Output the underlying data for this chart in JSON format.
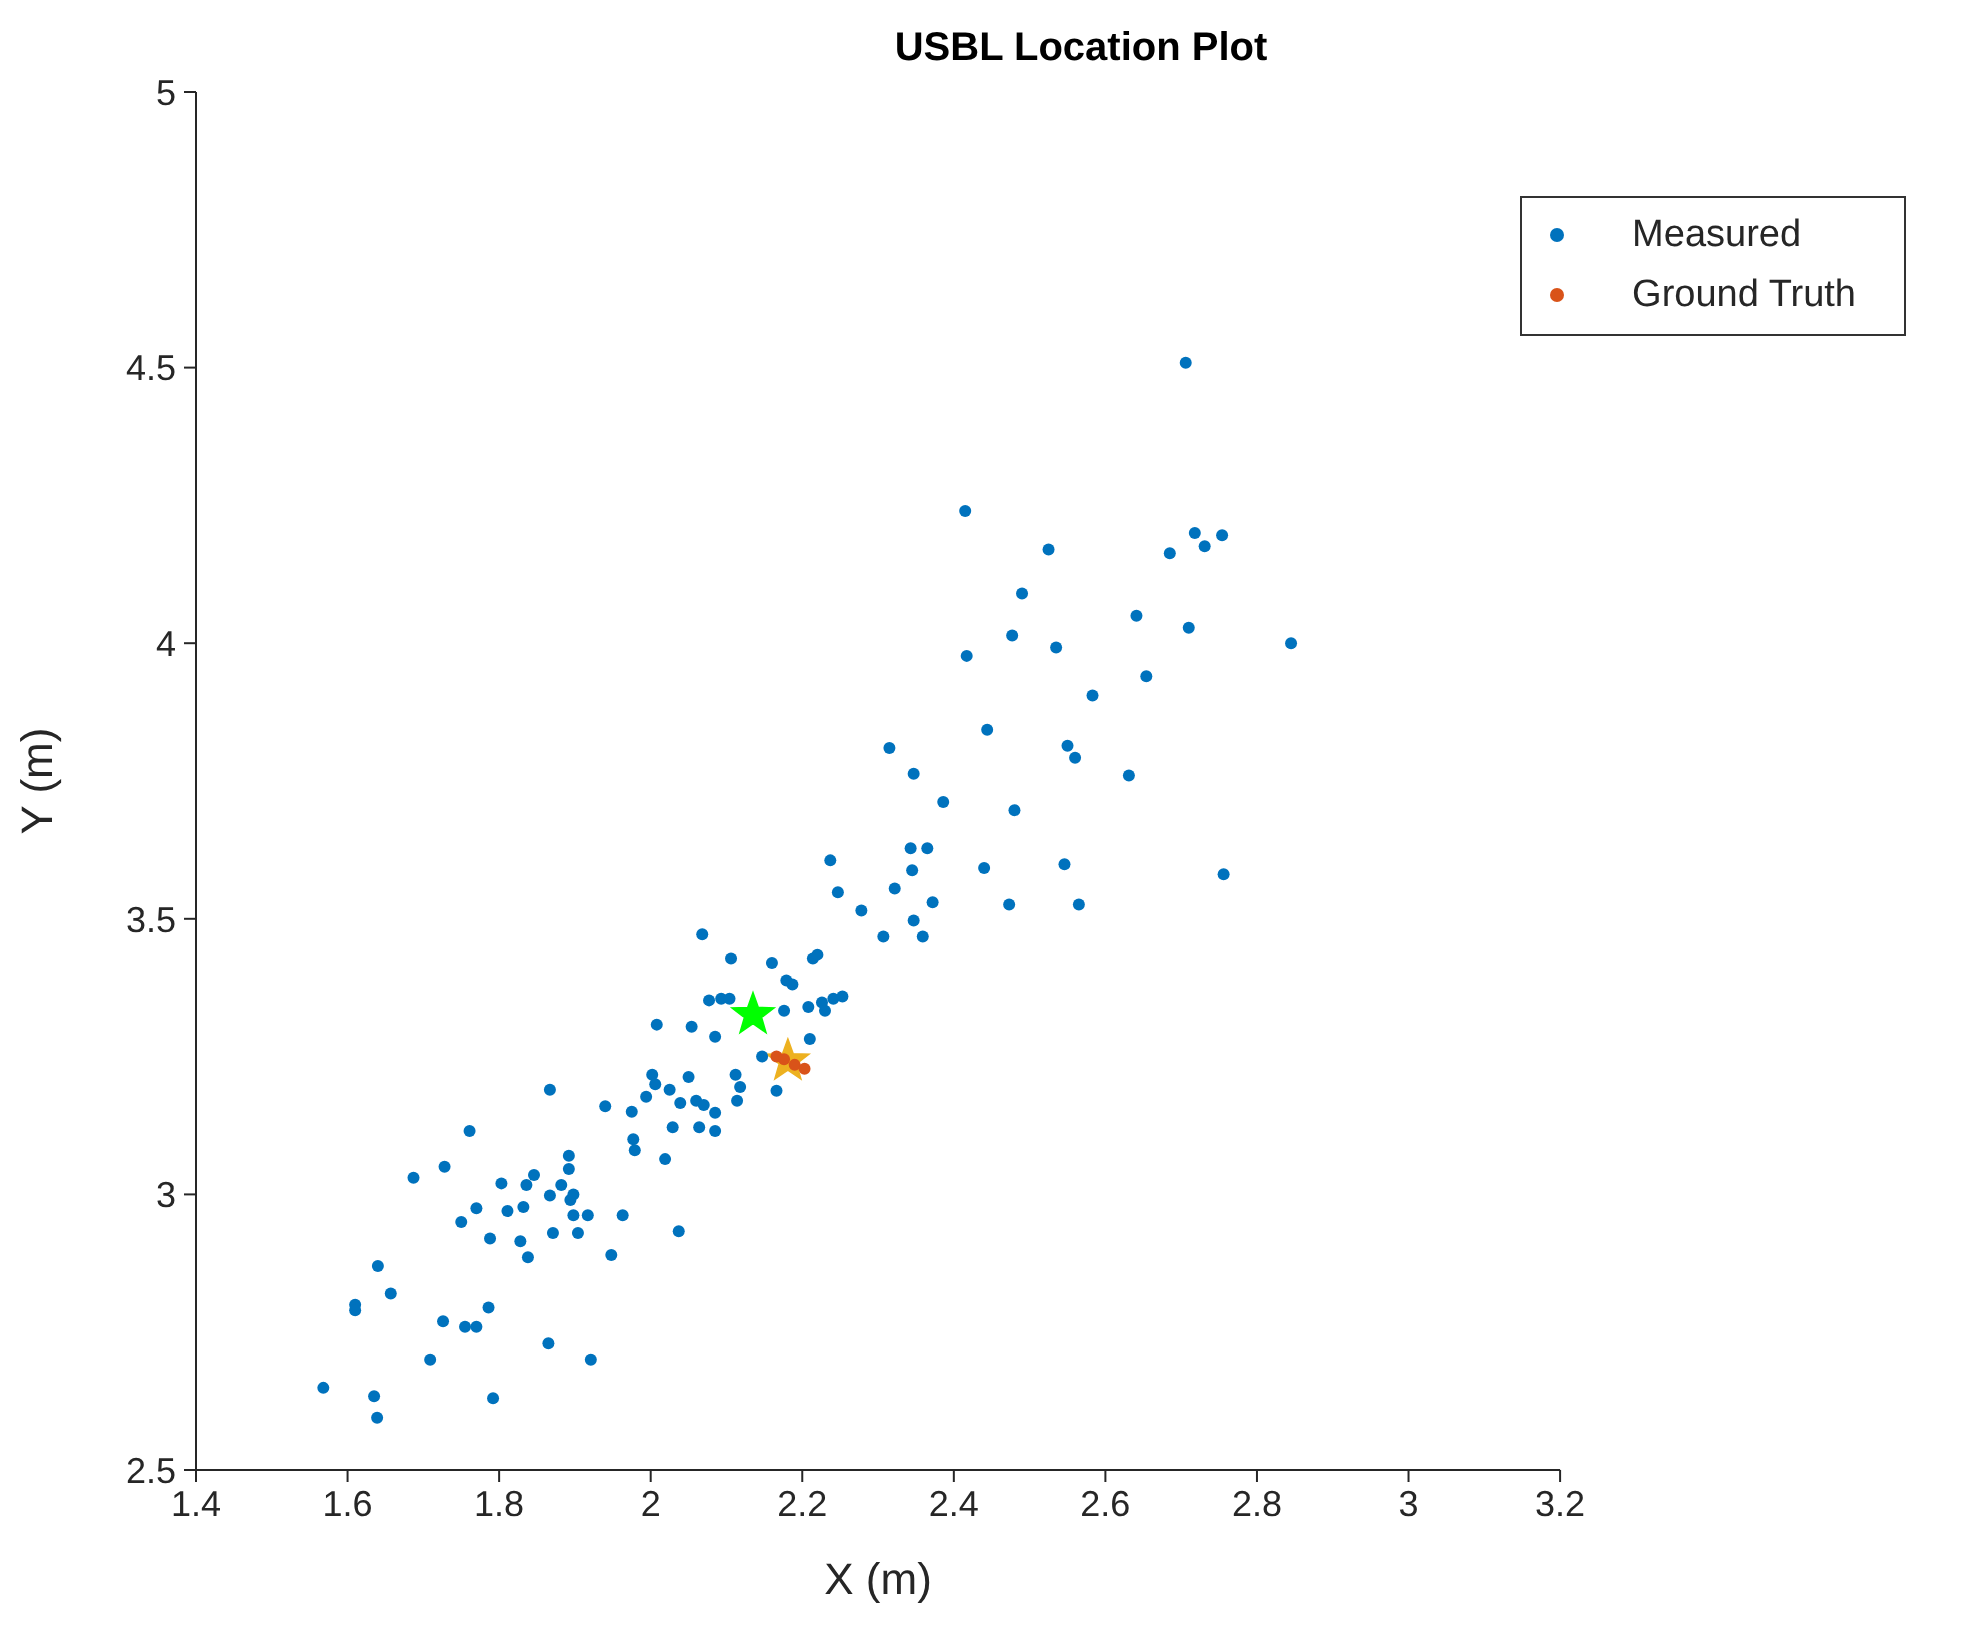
{
  "chart_data": {
    "type": "scatter",
    "title": "USBL Location Plot",
    "xlabel": "X (m)",
    "ylabel": "Y (m)",
    "xlim": [
      1.4,
      3.2
    ],
    "xticks": [
      1.4,
      1.6,
      1.8,
      2,
      2.2,
      2.4,
      2.6,
      2.8,
      3,
      3.2
    ],
    "ylim": [
      2.5,
      5
    ],
    "yticks": [
      2.5,
      3,
      3.5,
      4,
      4.5,
      5
    ],
    "grid": false,
    "legend": "top right",
    "series": [
      {
        "name": "Measured",
        "color": "#0072bd",
        "marker": "circle",
        "x": [
          1.568,
          1.635,
          1.639,
          1.61,
          1.61,
          1.64,
          1.657,
          1.687,
          1.728,
          1.761,
          1.709,
          1.726,
          1.755,
          1.77,
          1.786,
          1.792,
          1.75,
          1.77,
          1.788,
          1.803,
          1.811,
          1.832,
          1.828,
          1.838,
          1.836,
          1.846,
          1.867,
          1.867,
          1.871,
          1.882,
          1.865,
          1.892,
          1.892,
          1.894,
          1.898,
          1.898,
          1.904,
          1.917,
          1.921,
          1.948,
          1.963,
          1.94,
          1.975,
          1.994,
          2.002,
          2.006,
          2.025,
          2.05,
          1.977,
          1.979,
          2.029,
          2.039,
          2.06,
          2.019,
          2.037,
          2.064,
          2.237,
          2.247,
          2.278,
          2.307,
          2.322,
          2.345,
          2.343,
          2.365,
          2.347,
          2.359,
          2.372,
          2.068,
          2.106,
          2.16,
          2.214,
          2.22,
          2.179,
          2.187,
          2.077,
          2.093,
          2.104,
          2.176,
          2.208,
          2.226,
          2.23,
          2.241,
          2.253,
          2.008,
          2.054,
          2.085,
          2.21,
          2.147,
          2.166,
          2.112,
          2.118,
          2.114,
          2.07,
          2.085,
          2.085,
          2.417,
          2.535,
          2.583,
          2.315,
          2.444,
          2.55,
          2.56,
          2.347,
          2.386,
          2.48,
          2.44,
          2.546,
          2.473,
          2.565,
          2.706,
          2.415,
          2.525,
          2.685,
          2.718,
          2.731,
          2.754,
          2.49,
          2.477,
          2.641,
          2.71,
          2.845,
          2.654,
          2.631,
          2.756
        ],
        "values": [
          2.649,
          2.634,
          2.595,
          2.8,
          2.79,
          2.87,
          2.82,
          3.03,
          3.05,
          3.115,
          2.7,
          2.77,
          2.76,
          2.76,
          2.795,
          2.63,
          2.95,
          2.975,
          2.92,
          3.02,
          2.97,
          2.977,
          2.915,
          2.886,
          3.017,
          3.035,
          3.19,
          2.998,
          2.93,
          3.017,
          2.73,
          3.07,
          3.046,
          2.99,
          3.0,
          2.962,
          2.93,
          2.962,
          2.7,
          2.89,
          2.962,
          3.16,
          3.15,
          3.177,
          3.217,
          3.2,
          3.19,
          3.213,
          3.1,
          3.08,
          3.122,
          3.166,
          3.17,
          3.064,
          2.933,
          3.122,
          3.606,
          3.548,
          3.515,
          3.468,
          3.555,
          3.588,
          3.628,
          3.628,
          3.497,
          3.468,
          3.53,
          3.472,
          3.428,
          3.42,
          3.428,
          3.435,
          3.388,
          3.381,
          3.352,
          3.355,
          3.355,
          3.333,
          3.34,
          3.348,
          3.333,
          3.355,
          3.359,
          3.308,
          3.304,
          3.286,
          3.282,
          3.25,
          3.188,
          3.217,
          3.195,
          3.17,
          3.162,
          3.148,
          3.115,
          3.977,
          3.992,
          3.905,
          3.81,
          3.843,
          3.814,
          3.792,
          3.763,
          3.712,
          3.697,
          3.592,
          3.599,
          3.526,
          3.526,
          4.509,
          4.24,
          4.17,
          4.163,
          4.2,
          4.176,
          4.196,
          4.09,
          4.014,
          4.05,
          4.028,
          4.0,
          3.94,
          3.76,
          3.581
        ]
      },
      {
        "name": "Ground Truth",
        "color": "#d95319",
        "marker": "circle",
        "x": [
          2.166,
          2.176,
          2.19,
          2.203
        ],
        "values": [
          3.25,
          3.245,
          3.235,
          3.228
        ]
      },
      {
        "color": "#00ff00",
        "marker": "star",
        "x": [
          2.135
        ],
        "values": [
          3.326
        ]
      },
      {
        "color": "#edb120",
        "marker": "star",
        "x": [
          2.181
        ],
        "values": [
          3.242
        ]
      }
    ]
  }
}
